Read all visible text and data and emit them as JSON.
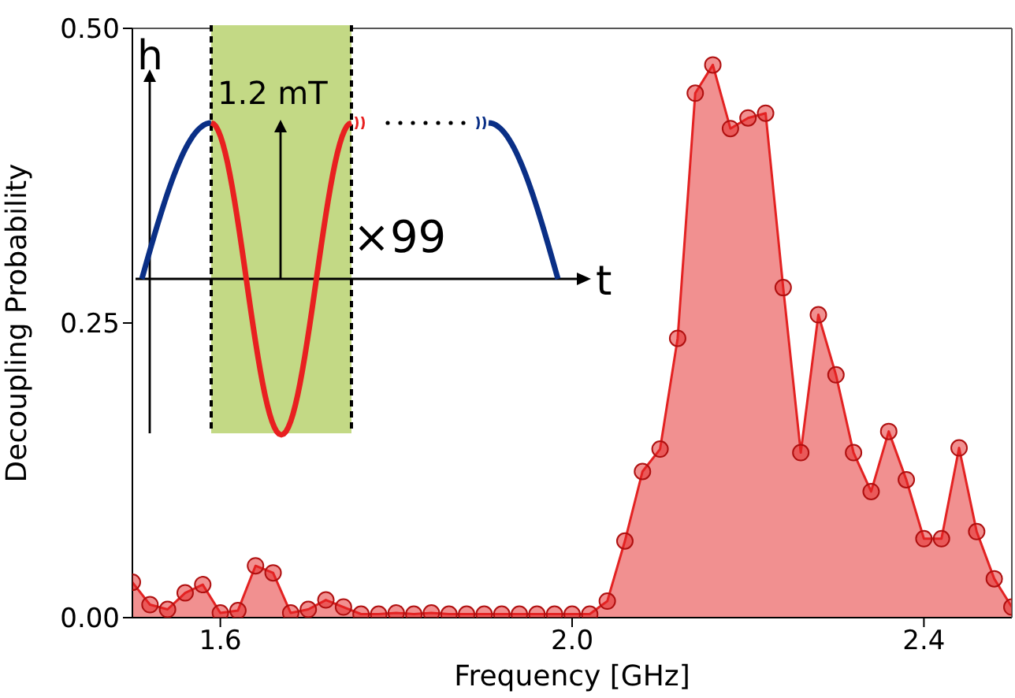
{
  "chart_data": {
    "type": "area",
    "xlabel": "Frequency [GHz]",
    "ylabel": "Decoupling Probability",
    "x": [
      1.5,
      1.52,
      1.54,
      1.56,
      1.58,
      1.6,
      1.62,
      1.64,
      1.66,
      1.68,
      1.7,
      1.72,
      1.74,
      1.76,
      1.78,
      1.8,
      1.82,
      1.84,
      1.86,
      1.88,
      1.9,
      1.92,
      1.94,
      1.96,
      1.98,
      2.0,
      2.02,
      2.04,
      2.06,
      2.08,
      2.1,
      2.12,
      2.14,
      2.16,
      2.18,
      2.2,
      2.22,
      2.24,
      2.26,
      2.28,
      2.3,
      2.32,
      2.34,
      2.36,
      2.38,
      2.4,
      2.42,
      2.44,
      2.46,
      2.48,
      2.5
    ],
    "series": [
      {
        "color": "#e32222",
        "values": [
          0.03,
          0.011,
          0.007,
          0.021,
          0.028,
          0.004,
          0.006,
          0.044,
          0.038,
          0.004,
          0.007,
          0.015,
          0.009,
          0.003,
          0.003,
          0.004,
          0.003,
          0.004,
          0.003,
          0.003,
          0.003,
          0.003,
          0.003,
          0.003,
          0.003,
          0.003,
          0.003,
          0.014,
          0.065,
          0.124,
          0.143,
          0.237,
          0.445,
          0.469,
          0.415,
          0.424,
          0.428,
          0.28,
          0.14,
          0.257,
          0.206,
          0.14,
          0.107,
          0.158,
          0.117,
          0.067,
          0.067,
          0.144,
          0.073,
          0.033,
          0.009
        ]
      }
    ],
    "xlim": [
      1.5,
      2.5
    ],
    "ylim": [
      0,
      0.5
    ],
    "xticks": [
      1.6,
      {
        "value": 2.0,
        "label": "2.0"
      },
      2.4
    ],
    "yticks": [
      {
        "value": 0,
        "label": "0.00"
      },
      {
        "value": 0.25,
        "label": "0.25"
      },
      {
        "value": 0.5,
        "label": "0.50"
      }
    ],
    "marker": "circle",
    "annotations": [
      "h",
      "1.2 mT",
      "×99",
      "t"
    ]
  }
}
